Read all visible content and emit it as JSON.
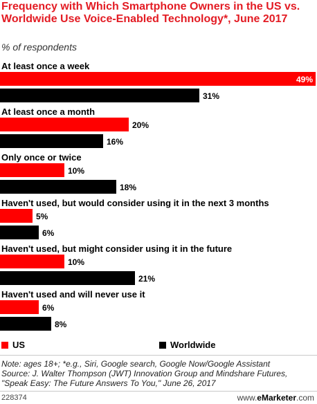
{
  "header": {
    "title": "Frequency with Which Smartphone Owners in the US vs. Worldwide Use Voice-Enabled Technology*, June 2017",
    "subtitle": "% of respondents"
  },
  "chart_data": {
    "type": "bar",
    "orientation": "horizontal",
    "categories": [
      "At least once a week",
      "At least once a month",
      "Only once or twice",
      "Haven't used, but would consider using it in the next 3 months",
      "Haven't used, but might consider using it in the future",
      "Haven't used and will never use it"
    ],
    "series": [
      {
        "name": "US",
        "values": [
          49,
          20,
          10,
          5,
          10,
          6
        ],
        "color": "#ff0000"
      },
      {
        "name": "Worldwide",
        "values": [
          31,
          16,
          18,
          6,
          21,
          8
        ],
        "color": "#000000"
      }
    ],
    "value_suffix": "%",
    "xlim": [
      0,
      49
    ],
    "legend_position": "bottom",
    "grid": false
  },
  "legend": {
    "us": "US",
    "worldwide": "Worldwide"
  },
  "footer": {
    "note": "Note: ages 18+; *e.g., Siri, Google search, Google Now/Google Assistant",
    "source_line1": "Source: J. Walter Thompson (JWT) Innovation Group and Mindshare Futures,",
    "source_line2": "\"Speak Easy: The Future Answers To You,\" June 26, 2017",
    "id": "228374",
    "brand_prefix": "www.",
    "brand_name": "eMarketer",
    "brand_suffix": ".com"
  }
}
